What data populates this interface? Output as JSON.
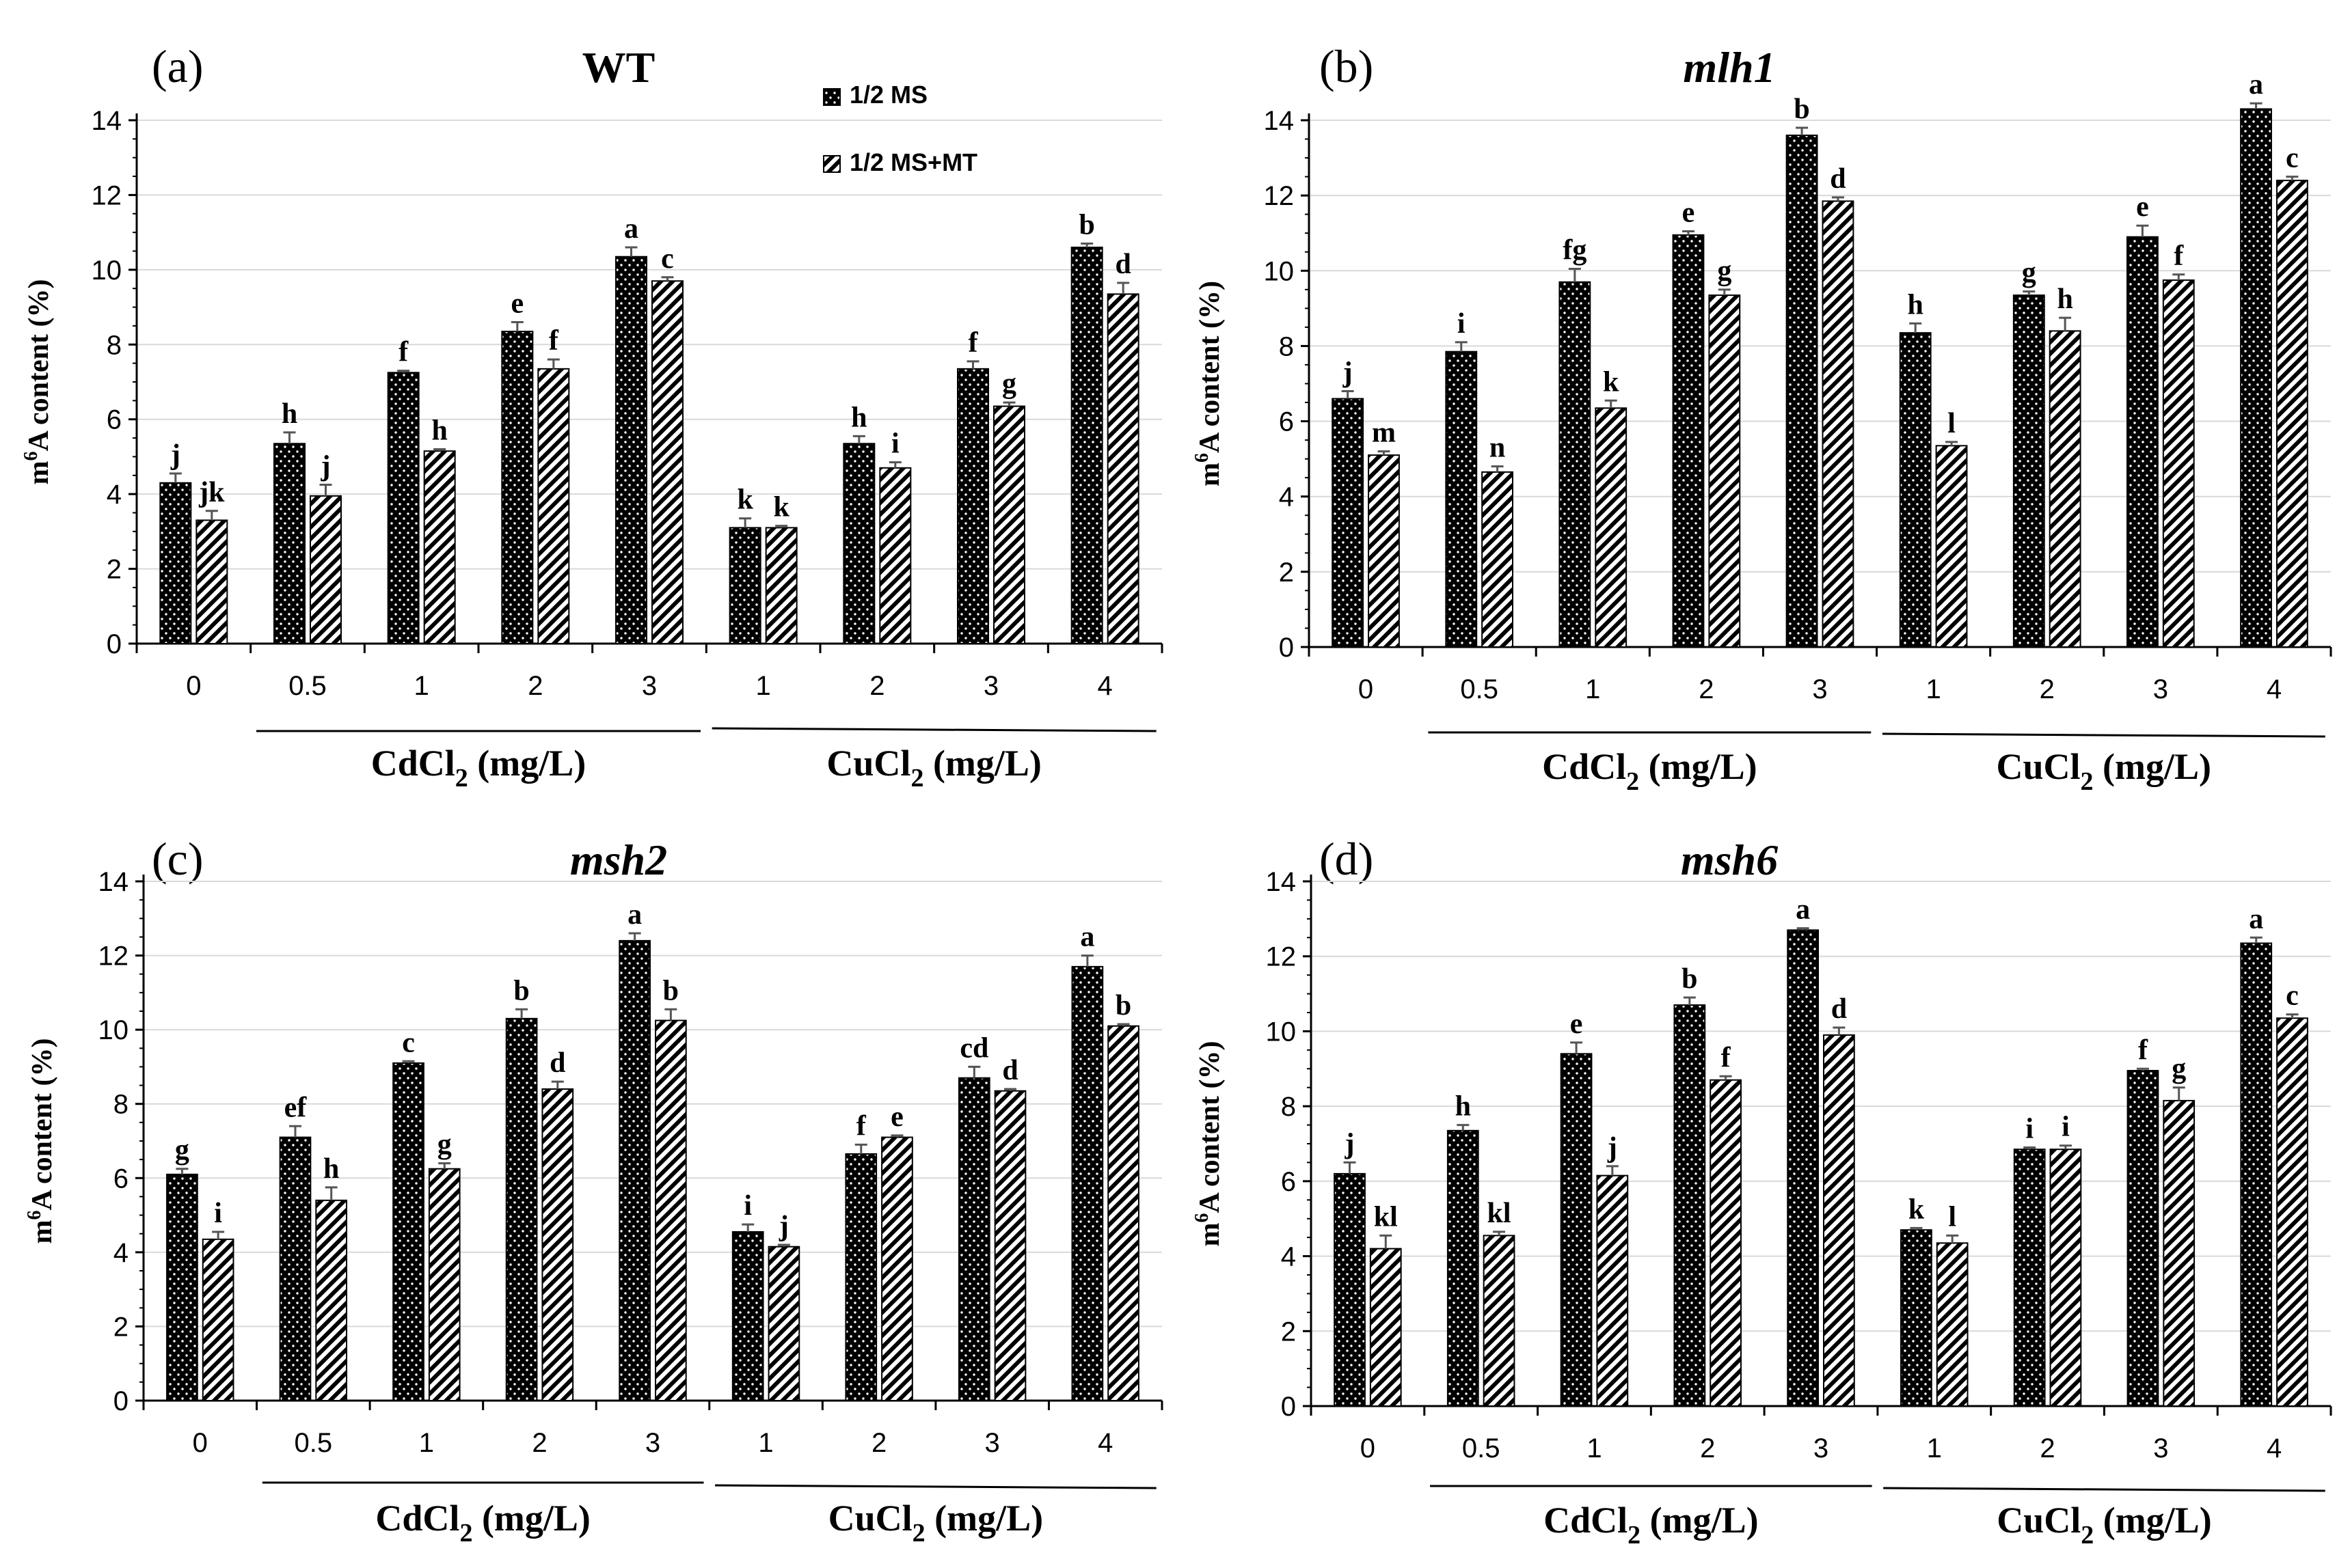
{
  "legend": {
    "ms_label": "1/2 MS",
    "mt_label": "1/2 MS+MT",
    "ms_color": "#000000",
    "mt_color": "#ffffff",
    "ms_pattern": "dots",
    "mt_pattern": "diagonal-stripes"
  },
  "chart_data": [
    {
      "panel": "(a)",
      "title": "WT",
      "title_italic": false,
      "type": "bar",
      "ylabel": "m6A content (%)",
      "ylim": [
        0,
        14
      ],
      "yticks": [
        0,
        2,
        4,
        6,
        8,
        10,
        12,
        14
      ],
      "categories": [
        "0",
        "0.5",
        "1",
        "2",
        "3",
        "1",
        "2",
        "3",
        "4"
      ],
      "groups": [
        {
          "label": "CdCl2 (mg/L)",
          "main": "CdCl",
          "sub": "2",
          "rest": " (mg/L)",
          "from": 1,
          "to": 4
        },
        {
          "label": "CuCl2 (mg/L)",
          "main": "CuCl",
          "sub": "2",
          "rest": " (mg/L)",
          "from": 5,
          "to": 8
        }
      ],
      "series": [
        {
          "name": "1/2 MS",
          "values": [
            4.3,
            5.35,
            7.25,
            8.35,
            10.35,
            3.1,
            5.35,
            7.35,
            10.6
          ],
          "errors": [
            0.25,
            0.3,
            0.05,
            0.25,
            0.25,
            0.25,
            0.2,
            0.2,
            0.1
          ],
          "letters": [
            "j",
            "h",
            "f",
            "e",
            "a",
            "k",
            "h",
            "f",
            "b"
          ]
        },
        {
          "name": "1/2 MS+MT",
          "values": [
            3.3,
            3.95,
            5.15,
            7.35,
            9.7,
            3.1,
            4.7,
            6.35,
            9.35
          ],
          "errors": [
            0.25,
            0.3,
            0.05,
            0.25,
            0.1,
            0.05,
            0.15,
            0.1,
            0.3
          ],
          "letters": [
            "jk",
            "j",
            "h",
            "f",
            "c",
            "k",
            "i",
            "g",
            "d"
          ]
        }
      ]
    },
    {
      "panel": "(b)",
      "title": "mlh1",
      "title_italic": true,
      "type": "bar",
      "ylabel": "m6A content (%)",
      "ylim": [
        0,
        14
      ],
      "yticks": [
        0,
        2,
        4,
        6,
        8,
        10,
        12,
        14
      ],
      "categories": [
        "0",
        "0.5",
        "1",
        "2",
        "3",
        "1",
        "2",
        "3",
        "4"
      ],
      "groups": [
        {
          "label": "CdCl2 (mg/L)",
          "main": "CdCl",
          "sub": "2",
          "rest": " (mg/L)",
          "from": 1,
          "to": 4
        },
        {
          "label": "CuCl2 (mg/L)",
          "main": "CuCl",
          "sub": "2",
          "rest": " (mg/L)",
          "from": 5,
          "to": 8
        }
      ],
      "series": [
        {
          "name": "1/2 MS",
          "values": [
            6.6,
            7.85,
            9.7,
            10.95,
            13.6,
            8.35,
            9.35,
            10.9,
            14.3
          ],
          "errors": [
            0.2,
            0.25,
            0.35,
            0.1,
            0.2,
            0.25,
            0.1,
            0.3,
            0.15
          ],
          "letters": [
            "j",
            "i",
            "fg",
            "e",
            "b",
            "h",
            "g",
            "e",
            "a"
          ]
        },
        {
          "name": "1/2 MS+MT",
          "values": [
            5.1,
            4.65,
            6.35,
            9.35,
            11.85,
            5.35,
            8.4,
            9.75,
            12.4
          ],
          "errors": [
            0.1,
            0.15,
            0.2,
            0.15,
            0.1,
            0.1,
            0.35,
            0.15,
            0.1
          ],
          "letters": [
            "m",
            "n",
            "k",
            "g",
            "d",
            "l",
            "h",
            "f",
            "c"
          ]
        }
      ]
    },
    {
      "panel": "(c)",
      "title": "msh2",
      "title_italic": true,
      "type": "bar",
      "ylabel": "m6A content (%)",
      "ylim": [
        0,
        14
      ],
      "yticks": [
        0,
        2,
        4,
        6,
        8,
        10,
        12,
        14
      ],
      "categories": [
        "0",
        "0.5",
        "1",
        "2",
        "3",
        "1",
        "2",
        "3",
        "4"
      ],
      "groups": [
        {
          "label": "CdCl2 (mg/L)",
          "main": "CdCl",
          "sub": "2",
          "rest": " (mg/L)",
          "from": 1,
          "to": 4
        },
        {
          "label": "CuCl2 (mg/L)",
          "main": "CuCl",
          "sub": "2",
          "rest": " (mg/L)",
          "from": 5,
          "to": 8
        }
      ],
      "series": [
        {
          "name": "1/2 MS",
          "values": [
            6.1,
            7.1,
            9.1,
            10.3,
            12.4,
            4.55,
            6.65,
            8.7,
            11.7
          ],
          "errors": [
            0.15,
            0.3,
            0.05,
            0.25,
            0.2,
            0.2,
            0.25,
            0.3,
            0.3
          ],
          "letters": [
            "g",
            "ef",
            "c",
            "b",
            "a",
            "i",
            "f",
            "cd",
            "a"
          ]
        },
        {
          "name": "1/2 MS+MT",
          "values": [
            4.35,
            5.4,
            6.25,
            8.4,
            10.25,
            4.15,
            7.1,
            8.35,
            10.1
          ],
          "errors": [
            0.2,
            0.35,
            0.15,
            0.2,
            0.3,
            0.05,
            0.05,
            0.05,
            0.05
          ],
          "letters": [
            "i",
            "h",
            "g",
            "d",
            "b",
            "j",
            "e",
            "d",
            "b"
          ]
        }
      ]
    },
    {
      "panel": "(d)",
      "title": "msh6",
      "title_italic": true,
      "type": "bar",
      "ylabel": "m6A content (%)",
      "ylim": [
        0,
        14
      ],
      "yticks": [
        0,
        2,
        4,
        6,
        8,
        10,
        12,
        14
      ],
      "categories": [
        "0",
        "0.5",
        "1",
        "2",
        "3",
        "1",
        "2",
        "3",
        "4"
      ],
      "groups": [
        {
          "label": "CdCl2 (mg/L)",
          "main": "CdCl",
          "sub": "2",
          "rest": " (mg/L)",
          "from": 1,
          "to": 4
        },
        {
          "label": "CuCl2 (mg/L)",
          "main": "CuCl",
          "sub": "2",
          "rest": " (mg/L)",
          "from": 5,
          "to": 8
        }
      ],
      "series": [
        {
          "name": "1/2 MS",
          "values": [
            6.2,
            7.35,
            9.4,
            10.7,
            12.7,
            4.7,
            6.85,
            8.95,
            12.35
          ],
          "errors": [
            0.3,
            0.15,
            0.3,
            0.2,
            0.05,
            0.05,
            0.05,
            0.05,
            0.15
          ],
          "letters": [
            "j",
            "h",
            "e",
            "b",
            "a",
            "k",
            "i",
            "f",
            "a"
          ]
        },
        {
          "name": "1/2 MS+MT",
          "values": [
            4.2,
            4.55,
            6.15,
            8.7,
            9.9,
            4.35,
            6.85,
            8.15,
            10.35
          ],
          "errors": [
            0.35,
            0.1,
            0.25,
            0.1,
            0.2,
            0.2,
            0.1,
            0.35,
            0.1
          ],
          "letters": [
            "kl",
            "kl",
            "j",
            "f",
            "d",
            "l",
            "i",
            "g",
            "c"
          ]
        }
      ]
    }
  ]
}
